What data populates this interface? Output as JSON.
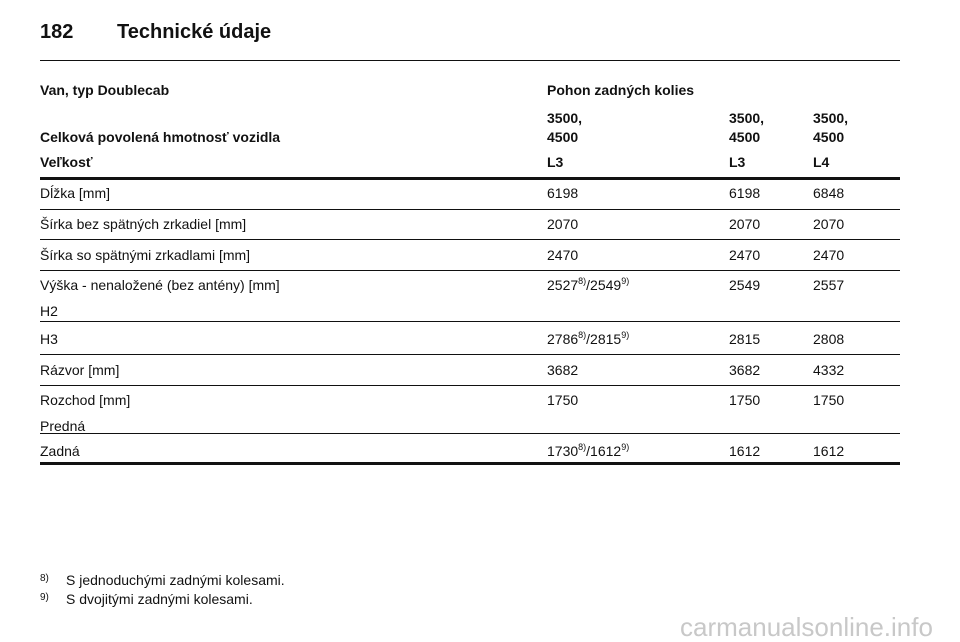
{
  "header": {
    "page_number": "182",
    "title": "Technické údaje"
  },
  "table": {
    "section": [
      "Van, typ Doublecab",
      "Pohon zadných kolies"
    ],
    "weight": {
      "label": "Celková povolená hmotnosť vozidla",
      "values": [
        [
          "3500,",
          "4500"
        ],
        [
          "3500,",
          "4500"
        ],
        [
          "3500,",
          "4500"
        ]
      ]
    },
    "size": {
      "label": "Veľkosť",
      "values": [
        "L3",
        "L3",
        "L4"
      ]
    },
    "rows": [
      {
        "label": [
          "Dĺžka [mm]"
        ],
        "values": [
          [
            "6198"
          ],
          [
            "6198"
          ],
          [
            "6848"
          ]
        ]
      },
      {
        "label": [
          "Šírka bez spätných zrkadiel [mm]"
        ],
        "values": [
          [
            "2070"
          ],
          [
            "2070"
          ],
          [
            "2070"
          ]
        ]
      },
      {
        "label": [
          "Šírka so spätnými zrkadlami [mm]"
        ],
        "values": [
          [
            "2470"
          ],
          [
            "2470"
          ],
          [
            "2470"
          ]
        ]
      },
      {
        "label": [
          "Výška - nenaložené (bez antény) [mm]",
          "H2"
        ],
        "values": [
          [
            "2527",
            "8)",
            "/2549",
            "9)"
          ],
          [
            "2549"
          ],
          [
            "2557"
          ]
        ]
      },
      {
        "label": [
          "H3"
        ],
        "values": [
          [
            "2786",
            "8)",
            "/2815",
            "9)"
          ],
          [
            "2815"
          ],
          [
            "2808"
          ]
        ]
      },
      {
        "label": [
          "Rázvor [mm]"
        ],
        "values": [
          [
            "3682"
          ],
          [
            "3682"
          ],
          [
            "4332"
          ]
        ]
      },
      {
        "label": [
          "Rozchod [mm]",
          "Predná"
        ],
        "values": [
          [
            "1750"
          ],
          [
            "1750"
          ],
          [
            "1750"
          ]
        ]
      },
      {
        "label": [
          "Zadná"
        ],
        "values": [
          [
            "1730",
            "8)",
            "/1612",
            "9)"
          ],
          [
            "1612"
          ],
          [
            "1612"
          ]
        ]
      }
    ]
  },
  "footnotes": [
    {
      "mark": "8)",
      "text": "S jednoduchými zadnými kolesami."
    },
    {
      "mark": "9)",
      "text": "S dvojitými zadnými kolesami."
    }
  ],
  "watermark": "carmanualsonline.info"
}
